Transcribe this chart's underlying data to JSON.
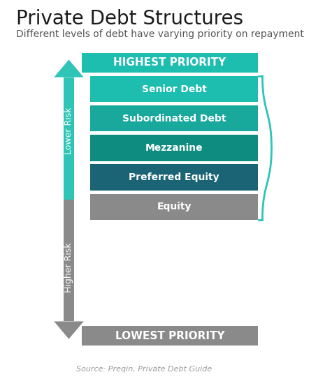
{
  "title": "Private Debt Structures",
  "subtitle": "Different levels of debt have varying priority on repayment",
  "highest_label": "HIGHEST PRIORITY",
  "lowest_label": "LOWEST PRIORITY",
  "highest_color": "#1dbdb0",
  "lowest_color": "#8a8a8a",
  "arrow_teal": "#2ec4b6",
  "arrow_gray": "#8a8a8a",
  "lower_risk_label": "Lower Risk",
  "higher_risk_label": "Higher Risk",
  "source_text": "Source: Preqin, Private Debt Guide",
  "bars": [
    {
      "label": "Senior Debt",
      "color": "#1dbdb0"
    },
    {
      "label": "Subordinated Debt",
      "color": "#18a89c"
    },
    {
      "label": "Mezzanine",
      "color": "#0e8c80"
    },
    {
      "label": "Preferred Equity",
      "color": "#1a6475"
    },
    {
      "label": "Equity",
      "color": "#8a8a8a"
    }
  ],
  "bracket_color": "#2ec4b6",
  "bg_color": "#ffffff",
  "title_fontsize": 20,
  "subtitle_fontsize": 10,
  "bar_label_fontsize": 10,
  "priority_fontsize": 11,
  "risk_fontsize": 9,
  "source_fontsize": 8
}
